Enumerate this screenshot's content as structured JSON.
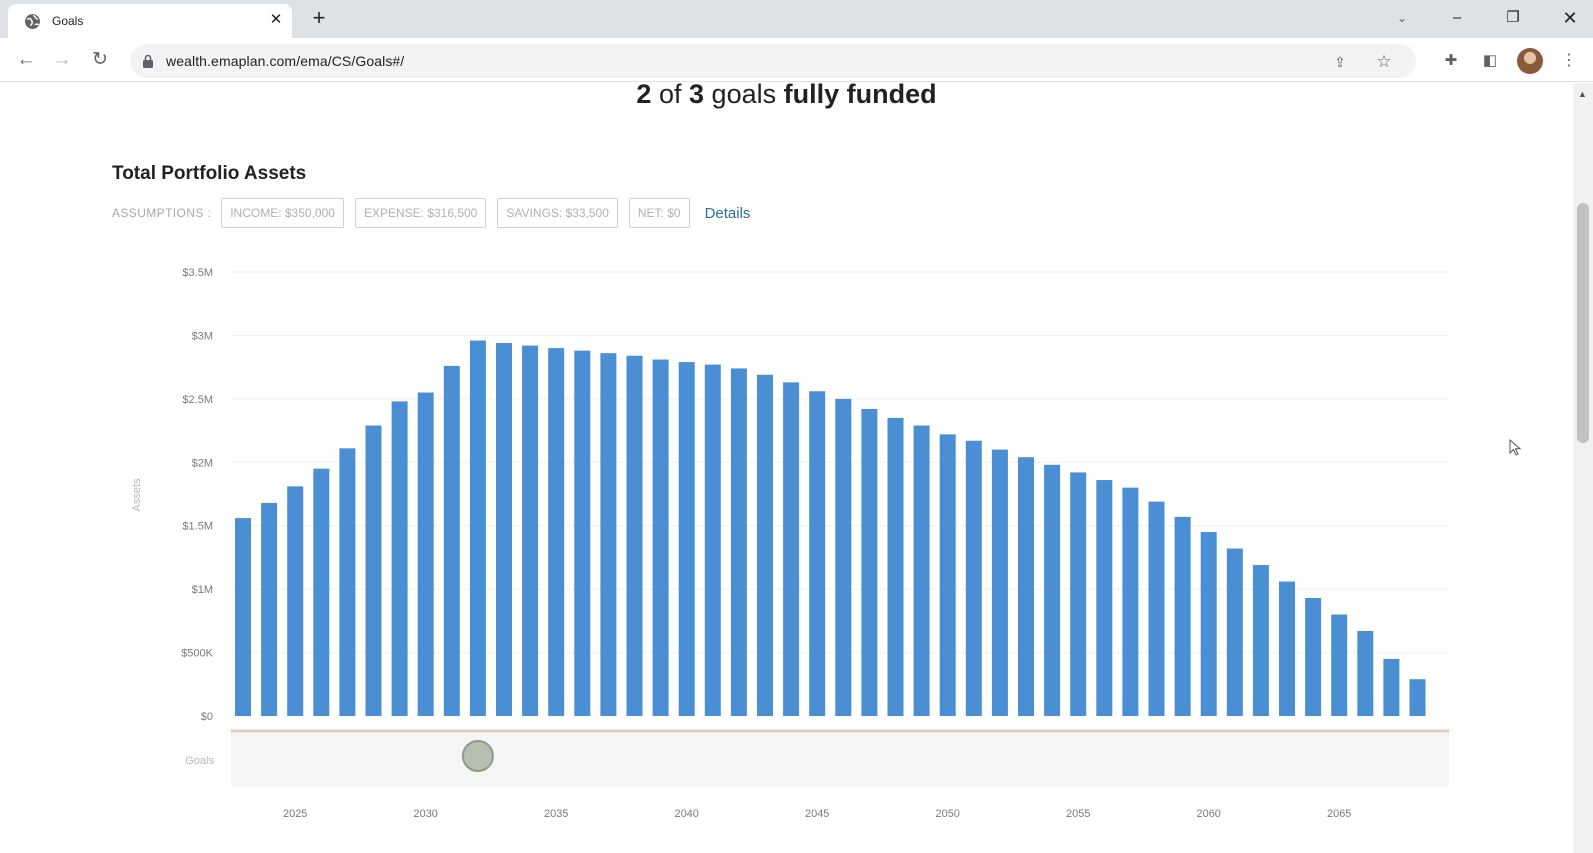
{
  "browser": {
    "tab_title": "Goals",
    "tab_close": "✕",
    "new_tab": "+",
    "url": "wealth.emaplan.com/ema/CS/Goals#/",
    "window_controls": {
      "minimize": "–",
      "maximize": "❐",
      "close": "✕"
    }
  },
  "headline": {
    "funded_count": "2",
    "of_word": "of",
    "total_count": "3",
    "goals_word": "goals",
    "status": "fully funded"
  },
  "chart_section": {
    "title": "Total Portfolio Assets",
    "assumptions_label": "ASSUMPTIONS :",
    "pills": [
      "INCOME: $350,000",
      "EXPENSE: $316,500",
      "SAVINGS: $33,500",
      "NET: $0"
    ],
    "details_link": "Details",
    "goals_row_label": "Goals"
  },
  "colors": {
    "bar": "#4a8fd3",
    "goal_marker_fill": "#b6c0b0",
    "goal_marker_stroke": "#8e9a88",
    "goals_band": "#f5f5f5",
    "axis_line": "#e7c8c4"
  },
  "chart_data": {
    "type": "bar",
    "title": "Total Portfolio Assets",
    "ylabel": "Assets",
    "xlabel": "",
    "ylim": [
      0,
      3500000
    ],
    "y_ticks": [
      {
        "value": 0,
        "label": "$0"
      },
      {
        "value": 500000,
        "label": "$500K"
      },
      {
        "value": 1000000,
        "label": "$1M"
      },
      {
        "value": 1500000,
        "label": "$1.5M"
      },
      {
        "value": 2000000,
        "label": "$2M"
      },
      {
        "value": 2500000,
        "label": "$2.5M"
      },
      {
        "value": 3000000,
        "label": "$3M"
      },
      {
        "value": 3500000,
        "label": "$3.5M"
      }
    ],
    "x_ticks": [
      2025,
      2030,
      2035,
      2040,
      2045,
      2050,
      2055,
      2060,
      2065
    ],
    "grid": true,
    "x": [
      2023,
      2024,
      2025,
      2026,
      2027,
      2028,
      2029,
      2030,
      2031,
      2032,
      2033,
      2034,
      2035,
      2036,
      2037,
      2038,
      2039,
      2040,
      2041,
      2042,
      2043,
      2044,
      2045,
      2046,
      2047,
      2048,
      2049,
      2050,
      2051,
      2052,
      2053,
      2054,
      2055,
      2056,
      2057,
      2058,
      2059,
      2060,
      2061,
      2062,
      2063,
      2064,
      2065,
      2066,
      2067,
      2068
    ],
    "values": [
      1560000,
      1680000,
      1810000,
      1950000,
      2110000,
      2290000,
      2480000,
      2550000,
      2760000,
      2960000,
      2940000,
      2920000,
      2900000,
      2880000,
      2860000,
      2840000,
      2810000,
      2790000,
      2770000,
      2740000,
      2690000,
      2630000,
      2560000,
      2500000,
      2420000,
      2350000,
      2290000,
      2220000,
      2170000,
      2100000,
      2040000,
      1980000,
      1920000,
      1860000,
      1800000,
      1690000,
      1570000,
      1450000,
      1320000,
      1190000,
      1060000,
      930000,
      800000,
      670000,
      450000,
      290000
    ],
    "goal_markers": [
      2032
    ]
  }
}
